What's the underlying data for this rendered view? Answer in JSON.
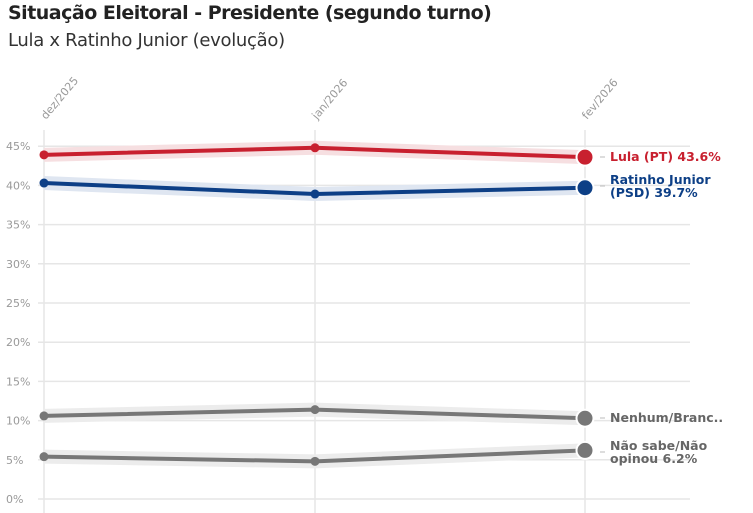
{
  "chart_data": {
    "type": "line",
    "title": "Situação Eleitoral - Presidente (segundo turno)",
    "subtitle": "Lula x Ratinho Junior (evolução)",
    "x": [
      "dez/2025",
      "jan/2026",
      "fev/2026"
    ],
    "yticks": [
      "0%",
      "5%",
      "10%",
      "15%",
      "20%",
      "25%",
      "30%",
      "35%",
      "40%",
      "45%"
    ],
    "ylim": [
      0,
      45
    ],
    "grid": true,
    "series": [
      {
        "name": "Lula (PT)",
        "values": [
          43.9,
          44.8,
          43.6
        ],
        "color": "#c8202f",
        "band": "#f6dfe1",
        "label": [
          "Lula (PT) 43.6%"
        ]
      },
      {
        "name": "Ratinho Junior (PSD)",
        "values": [
          40.3,
          38.9,
          39.7
        ],
        "color": "#0d3f86",
        "band": "#dfe6f1",
        "label": [
          "Ratinho Junior",
          "(PSD) 39.7%"
        ]
      },
      {
        "name": "Nenhum/Branco/Nulo",
        "values": [
          10.6,
          11.4,
          10.3
        ],
        "color": "#777777",
        "band": "#ececec",
        "label": [
          "Nenhum/Branc.."
        ]
      },
      {
        "name": "Não sabe/Não opinou",
        "values": [
          5.4,
          4.8,
          6.2
        ],
        "color": "#777777",
        "band": "#ececec",
        "label": [
          "Não sabe/Não",
          "opinou 6.2%"
        ]
      }
    ]
  }
}
